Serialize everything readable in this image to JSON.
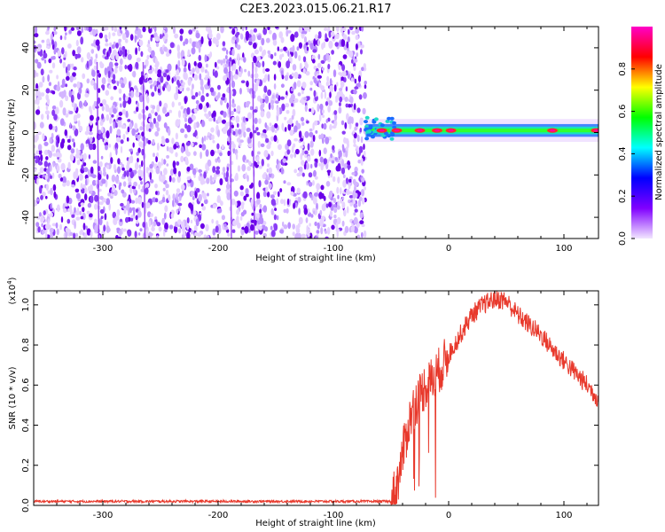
{
  "title": "C2E3.2023.015.06.21.R17",
  "colors": {
    "snr_line": "#e8392c",
    "scatter_points": "#6a00e8",
    "background": "#ffffff",
    "axis": "#000000"
  },
  "chart_data": [
    {
      "type": "heatmap",
      "title": "C2E3.2023.015.06.21.R17",
      "xlabel": "Height of straight line (km)",
      "ylabel": "Frequency (Hz)",
      "xlim": [
        -360,
        130
      ],
      "ylim": [
        -50,
        50
      ],
      "x_ticks": [
        -300,
        -200,
        -100,
        0,
        100
      ],
      "y_ticks": [
        -40,
        -20,
        0,
        20,
        40
      ],
      "x_tick_labels": [
        "-300",
        "-200",
        "-100",
        "0",
        "100"
      ],
      "y_tick_labels": [
        "-40",
        "-20",
        "0",
        "20",
        "40"
      ],
      "noise_region_x": [
        -360,
        -72
      ],
      "signal_band": {
        "x_start": -72,
        "x_end": 130,
        "freq_center": 1,
        "freq_halfwidth": 3,
        "peak_x": [
          -58,
          -45,
          -25,
          -10,
          2,
          90,
          128
        ]
      },
      "colorbar": {
        "label": "Normalized spectral amplitude",
        "range": [
          0.0,
          1.0
        ],
        "ticks": [
          0.0,
          0.2,
          0.4,
          0.6,
          0.8
        ],
        "tick_labels": [
          "0.0",
          "0.2",
          "0.4",
          "0.6",
          "0.8"
        ],
        "colors": [
          "#f2e6ff",
          "#8000ff",
          "#0000ff",
          "#00ffff",
          "#00ff00",
          "#ffff00",
          "#ff0000",
          "#ff00c8"
        ]
      }
    },
    {
      "type": "line",
      "xlabel": "Height of straight line (km)",
      "ylabel": "SNR (10 * v/v)",
      "yscale_label": "(x10",
      "yscale_exp": "4",
      "yscale_close": ")",
      "xlim": [
        -360,
        130
      ],
      "ylim": [
        0,
        1.07
      ],
      "x_ticks": [
        -300,
        -200,
        -100,
        0,
        100
      ],
      "y_ticks": [
        0.0,
        0.2,
        0.4,
        0.6,
        0.8,
        1.0
      ],
      "x_tick_labels": [
        "-300",
        "-200",
        "-100",
        "0",
        "100"
      ],
      "y_tick_labels": [
        "0.0",
        "0.2",
        "0.4",
        "0.6",
        "0.8",
        "1.0"
      ],
      "series": [
        {
          "x": [
            -360,
            -100,
            -50,
            -45,
            -40,
            -35,
            -30,
            -25,
            -20,
            -15,
            -10,
            -5,
            0,
            10,
            20,
            30,
            40,
            50,
            60,
            70,
            80,
            90,
            100,
            110,
            120,
            130
          ],
          "values": [
            0.02,
            0.02,
            0.02,
            0.1,
            0.25,
            0.4,
            0.5,
            0.55,
            0.6,
            0.62,
            0.66,
            0.7,
            0.75,
            0.85,
            0.95,
            1.0,
            1.03,
            1.02,
            0.95,
            0.9,
            0.85,
            0.78,
            0.72,
            0.66,
            0.6,
            0.53
          ]
        }
      ]
    }
  ]
}
